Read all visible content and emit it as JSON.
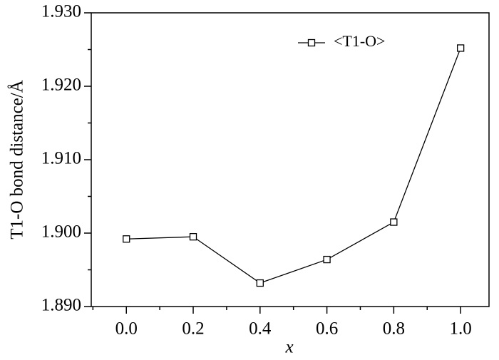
{
  "chart_data": {
    "type": "line",
    "x_label": "x",
    "y_label": "T1-O bond distance/Å",
    "x": [
      0.0,
      0.2,
      0.4,
      0.6,
      0.8,
      1.0
    ],
    "series": [
      {
        "name": "<T1-O>",
        "color": "#000000",
        "marker": "square",
        "values": [
          1.8992,
          1.8995,
          1.8932,
          1.8964,
          1.9015,
          1.9252
        ]
      }
    ],
    "xlim": [
      -0.105,
      1.085
    ],
    "xticks": [
      {
        "value": 0.0,
        "label": "0.0"
      },
      0.2,
      0.4,
      0.6,
      0.8,
      {
        "value": 1.0,
        "label": "1.0"
      }
    ],
    "xminorticks": [
      -0.1,
      0.1,
      0.3,
      0.5,
      0.7,
      0.9
    ],
    "ylim": [
      1.89,
      1.93
    ],
    "yticks": [
      {
        "value": 1.89,
        "label": "1.890"
      },
      {
        "value": 1.9,
        "label": "1.900"
      },
      {
        "value": 1.91,
        "label": "1.910"
      },
      {
        "value": 1.92,
        "label": "1.920"
      },
      {
        "value": 1.93,
        "label": "1.930"
      }
    ],
    "yminorticks": [
      1.895,
      1.905,
      1.915,
      1.925
    ],
    "grid": false,
    "legend": "upper right"
  }
}
